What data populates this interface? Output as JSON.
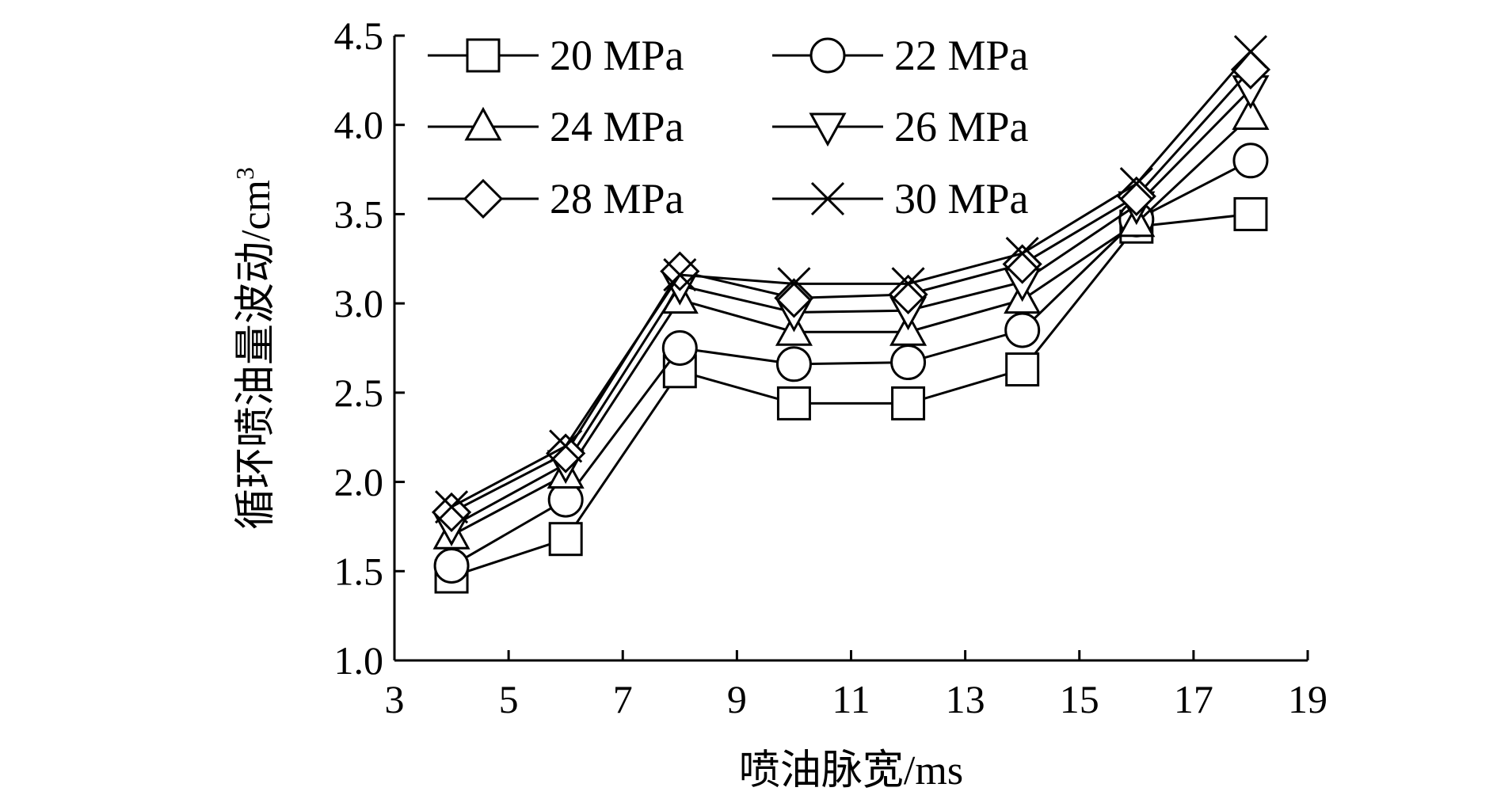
{
  "chart_data": {
    "type": "line",
    "title": "",
    "xlabel": "喷油脉宽/ms",
    "ylabel": "循环喷油量波动/cm",
    "ylabel_superscript": "3",
    "xlim": [
      3,
      19
    ],
    "ylim": [
      1.0,
      4.5
    ],
    "xticks": [
      "3",
      "5",
      "7",
      "9",
      "11",
      "13",
      "15",
      "17",
      "19"
    ],
    "yticks": [
      "1.0",
      "1.5",
      "2.0",
      "2.5",
      "3.0",
      "3.5",
      "4.0",
      "4.5"
    ],
    "x": [
      4,
      6,
      8,
      10,
      12,
      14,
      16,
      18
    ],
    "legend_position": "top-left",
    "series": [
      {
        "name": "20 MPa",
        "marker": "square",
        "values": [
          1.47,
          1.68,
          2.62,
          2.44,
          2.44,
          2.63,
          3.43,
          3.5
        ]
      },
      {
        "name": "22 MPa",
        "marker": "circle",
        "values": [
          1.53,
          1.9,
          2.75,
          2.66,
          2.67,
          2.85,
          3.47,
          3.8
        ]
      },
      {
        "name": "24 MPa",
        "marker": "triangle-up",
        "values": [
          1.7,
          2.04,
          3.02,
          2.84,
          2.84,
          3.02,
          3.45,
          4.05
        ]
      },
      {
        "name": "26 MPa",
        "marker": "triangle-down",
        "values": [
          1.75,
          2.1,
          3.1,
          2.95,
          2.96,
          3.12,
          3.55,
          4.2
        ]
      },
      {
        "name": "28 MPa",
        "marker": "diamond",
        "values": [
          1.83,
          2.16,
          3.18,
          3.03,
          3.05,
          3.22,
          3.6,
          4.31
        ]
      },
      {
        "name": "30 MPa",
        "marker": "x",
        "values": [
          1.86,
          2.2,
          3.16,
          3.11,
          3.11,
          3.28,
          3.67,
          4.41
        ]
      }
    ]
  }
}
